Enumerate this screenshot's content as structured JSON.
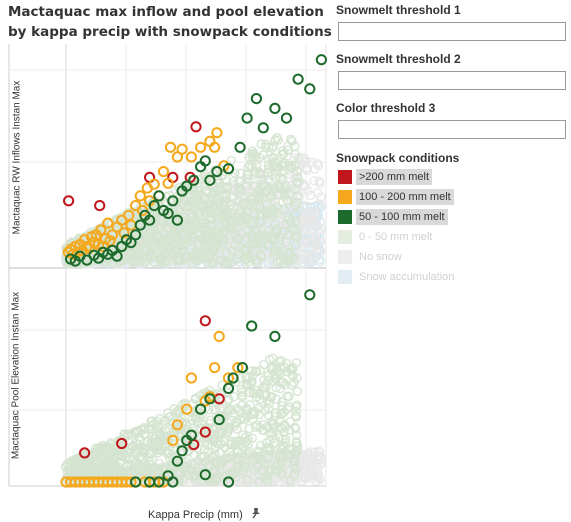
{
  "title": {
    "line1": "Mactaquac max inflow and pool elevation",
    "line2": "by kappa precip with snowpack conditions"
  },
  "axes": {
    "top_ylabel": "Mactaquac RW Inflows Instan Max",
    "bottom_ylabel": "Mactaquac Pool Elevation Instan Max",
    "xlabel": "Kappa Precip (mm)",
    "pin_icon": "pin-icon"
  },
  "filters": [
    {
      "label": "Snowmelt threshold 1",
      "value": ""
    },
    {
      "label": "Snowmelt threshold 2",
      "value": ""
    },
    {
      "label": "Color threshold 3",
      "value": ""
    }
  ],
  "legend": {
    "title": "Snowpack conditions",
    "items": [
      {
        "label": ">200 mm melt",
        "color": "#c0161c",
        "state": "highlight"
      },
      {
        "label": "100 - 200 mm melt",
        "color": "#f5a81c",
        "state": "highlight"
      },
      {
        "label": "50 - 100 mm melt",
        "color": "#1d6b2c",
        "state": "highlight"
      },
      {
        "label": "0 - 50 mm melt",
        "color": "#e4ede0",
        "state": "dim"
      },
      {
        "label": "No snow",
        "color": "#eeeeee",
        "state": "dim"
      },
      {
        "label": "Snow accumulation",
        "color": "#e2edf3",
        "state": "dim"
      }
    ]
  },
  "chart_data": [
    {
      "type": "scatter",
      "xlabel": "Kappa Precip (mm)",
      "ylabel": "Mactaquac RW Inflows Instan Max",
      "grid": true,
      "series": [
        {
          "name": ">200 mm melt",
          "color": "#c0161c",
          "points": [
            [
              1.1,
              65
            ],
            [
              14.5,
              60
            ],
            [
              56,
              141
            ],
            [
              53.5,
              89
            ],
            [
              46,
              89
            ],
            [
              36,
              89
            ]
          ]
        },
        {
          "name": "100 - 200 mm melt",
          "color": "#f5a81c",
          "points": [
            [
              1,
              12
            ],
            [
              2,
              15
            ],
            [
              3,
              10
            ],
            [
              4,
              18
            ],
            [
              5,
              12
            ],
            [
              6,
              20
            ],
            [
              7,
              14
            ],
            [
              8,
              25
            ],
            [
              9,
              18
            ],
            [
              10,
              16
            ],
            [
              11,
              28
            ],
            [
              12,
              22
            ],
            [
              13,
              30
            ],
            [
              14,
              20
            ],
            [
              15,
              35
            ],
            [
              16,
              18
            ],
            [
              17,
              26
            ],
            [
              18,
              42
            ],
            [
              19,
              24
            ],
            [
              20,
              30
            ],
            [
              22,
              38
            ],
            [
              24,
              45
            ],
            [
              25,
              32
            ],
            [
              27,
              50
            ],
            [
              28,
              40
            ],
            [
              30,
              60
            ],
            [
              32,
              70
            ],
            [
              33,
              55
            ],
            [
              35,
              78
            ],
            [
              36,
              65
            ],
            [
              38,
              82
            ],
            [
              40,
              70
            ],
            [
              42,
              95
            ],
            [
              44,
              83
            ],
            [
              45,
              120
            ],
            [
              48,
              110
            ],
            [
              50,
              118
            ],
            [
              54,
              110
            ],
            [
              58,
              120
            ],
            [
              62,
              126
            ],
            [
              64,
              120
            ],
            [
              65,
              135
            ],
            [
              68,
              101
            ]
          ]
        },
        {
          "name": "50 - 100 mm melt",
          "color": "#1d6b2c",
          "points": [
            [
              2,
              5
            ],
            [
              4,
              3
            ],
            [
              6,
              8
            ],
            [
              9,
              4
            ],
            [
              12,
              9
            ],
            [
              14,
              6
            ],
            [
              16,
              12
            ],
            [
              18,
              10
            ],
            [
              20,
              14
            ],
            [
              22,
              8
            ],
            [
              24,
              18
            ],
            [
              26,
              25
            ],
            [
              28,
              22
            ],
            [
              30,
              30
            ],
            [
              32,
              40
            ],
            [
              34,
              50
            ],
            [
              36,
              45
            ],
            [
              38,
              60
            ],
            [
              40,
              70
            ],
            [
              42,
              55
            ],
            [
              44,
              52
            ],
            [
              46,
              65
            ],
            [
              48,
              45
            ],
            [
              50,
              75
            ],
            [
              52,
              80
            ],
            [
              55,
              86
            ],
            [
              58,
              100
            ],
            [
              60,
              106
            ],
            [
              62,
              86
            ],
            [
              65,
              95
            ],
            [
              70,
              98
            ],
            [
              75,
              120
            ],
            [
              78,
              150
            ],
            [
              82,
              170
            ],
            [
              85,
              140
            ],
            [
              90,
              160
            ],
            [
              95,
              150
            ],
            [
              100,
              190
            ],
            [
              105,
              180
            ],
            [
              110,
              210
            ]
          ]
        },
        {
          "name": "0 - 50 mm melt",
          "color": "#d5e4d0",
          "density": "dense",
          "x_range": [
            0,
            100
          ],
          "y_range": [
            0,
            130
          ]
        },
        {
          "name": "No snow",
          "color": "#e8e8e8",
          "density": "dense",
          "x_range": [
            0,
            110
          ],
          "y_range": [
            0,
            110
          ]
        },
        {
          "name": "Snow accumulation",
          "color": "#d6e8f2",
          "density": "dense",
          "x_range": [
            0,
            110
          ],
          "y_range": [
            0,
            60
          ]
        }
      ]
    },
    {
      "type": "scatter",
      "xlabel": "Kappa Precip (mm)",
      "ylabel": "Mactaquac Pool Elevation Instan Max",
      "grid": true,
      "series": [
        {
          "name": ">200 mm melt",
          "color": "#c0161c",
          "points": [
            [
              8,
              28
            ],
            [
              24,
              37
            ],
            [
              60,
              155
            ],
            [
              66,
              80
            ],
            [
              60,
              48
            ],
            [
              55,
              36
            ]
          ]
        },
        {
          "name": "100 - 200 mm melt",
          "color": "#f5a81c",
          "points": [
            [
              0,
              0
            ],
            [
              2,
              0
            ],
            [
              4,
              0
            ],
            [
              6,
              0
            ],
            [
              8,
              0
            ],
            [
              10,
              0
            ],
            [
              12,
              0
            ],
            [
              14,
              0
            ],
            [
              16,
              0
            ],
            [
              18,
              0
            ],
            [
              20,
              0
            ],
            [
              22,
              0
            ],
            [
              24,
              0
            ],
            [
              26,
              0
            ],
            [
              28,
              0
            ],
            [
              30,
              0
            ],
            [
              34,
              0
            ],
            [
              36,
              0
            ],
            [
              38,
              0
            ],
            [
              40,
              0
            ],
            [
              42,
              0
            ],
            [
              46,
              40
            ],
            [
              48,
              55
            ],
            [
              52,
              70
            ],
            [
              54,
              100
            ],
            [
              60,
              78
            ],
            [
              62,
              82
            ],
            [
              64,
              110
            ],
            [
              66,
              140
            ],
            [
              70,
              100
            ],
            [
              74,
              110
            ]
          ]
        },
        {
          "name": "50 - 100 mm melt",
          "color": "#1d6b2c",
          "points": [
            [
              30,
              0
            ],
            [
              36,
              0
            ],
            [
              40,
              0
            ],
            [
              44,
              6
            ],
            [
              46,
              0
            ],
            [
              48,
              20
            ],
            [
              50,
              30
            ],
            [
              52,
              40
            ],
            [
              54,
              45
            ],
            [
              58,
              70
            ],
            [
              62,
              80
            ],
            [
              60,
              7
            ],
            [
              66,
              60
            ],
            [
              70,
              90
            ],
            [
              72,
              100
            ],
            [
              76,
              110
            ],
            [
              80,
              150
            ],
            [
              90,
              140
            ],
            [
              105,
              180
            ],
            [
              70,
              0
            ]
          ]
        },
        {
          "name": "0 - 50 mm melt",
          "color": "#d5e4d0",
          "density": "dense",
          "x_range": [
            0,
            100
          ],
          "y_range": [
            0,
            120
          ]
        },
        {
          "name": "No snow",
          "color": "#e8e8e8",
          "density": "dense",
          "x_range": [
            0,
            110
          ],
          "y_range": [
            0,
            30
          ]
        }
      ]
    }
  ]
}
